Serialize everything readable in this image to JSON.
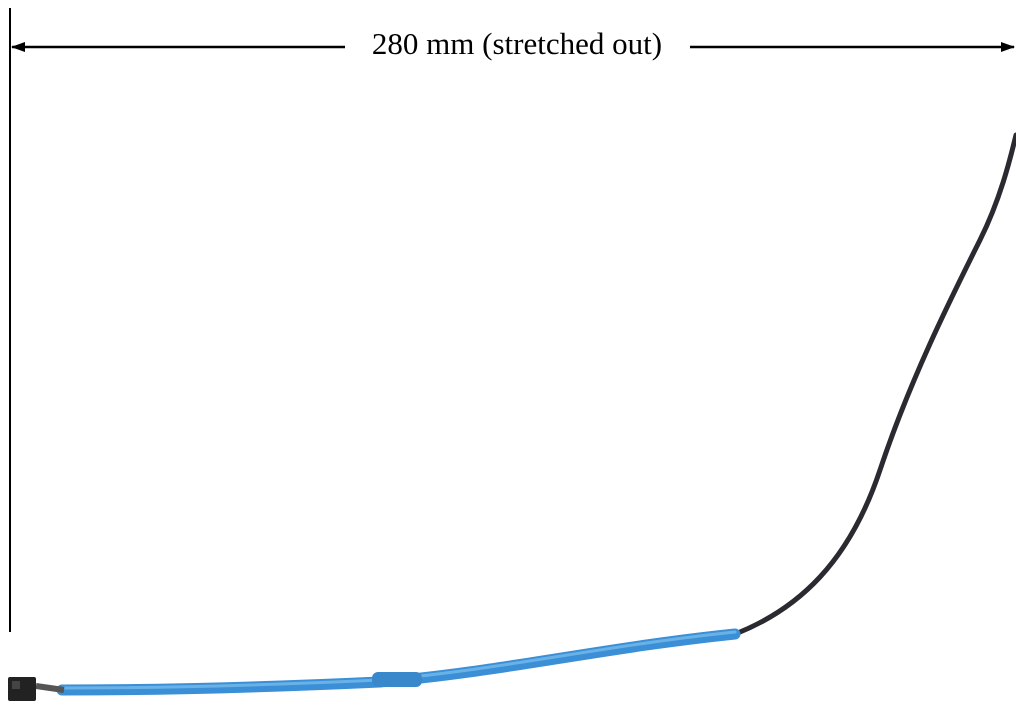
{
  "dimension": {
    "label": "280 mm (stretched out)"
  }
}
